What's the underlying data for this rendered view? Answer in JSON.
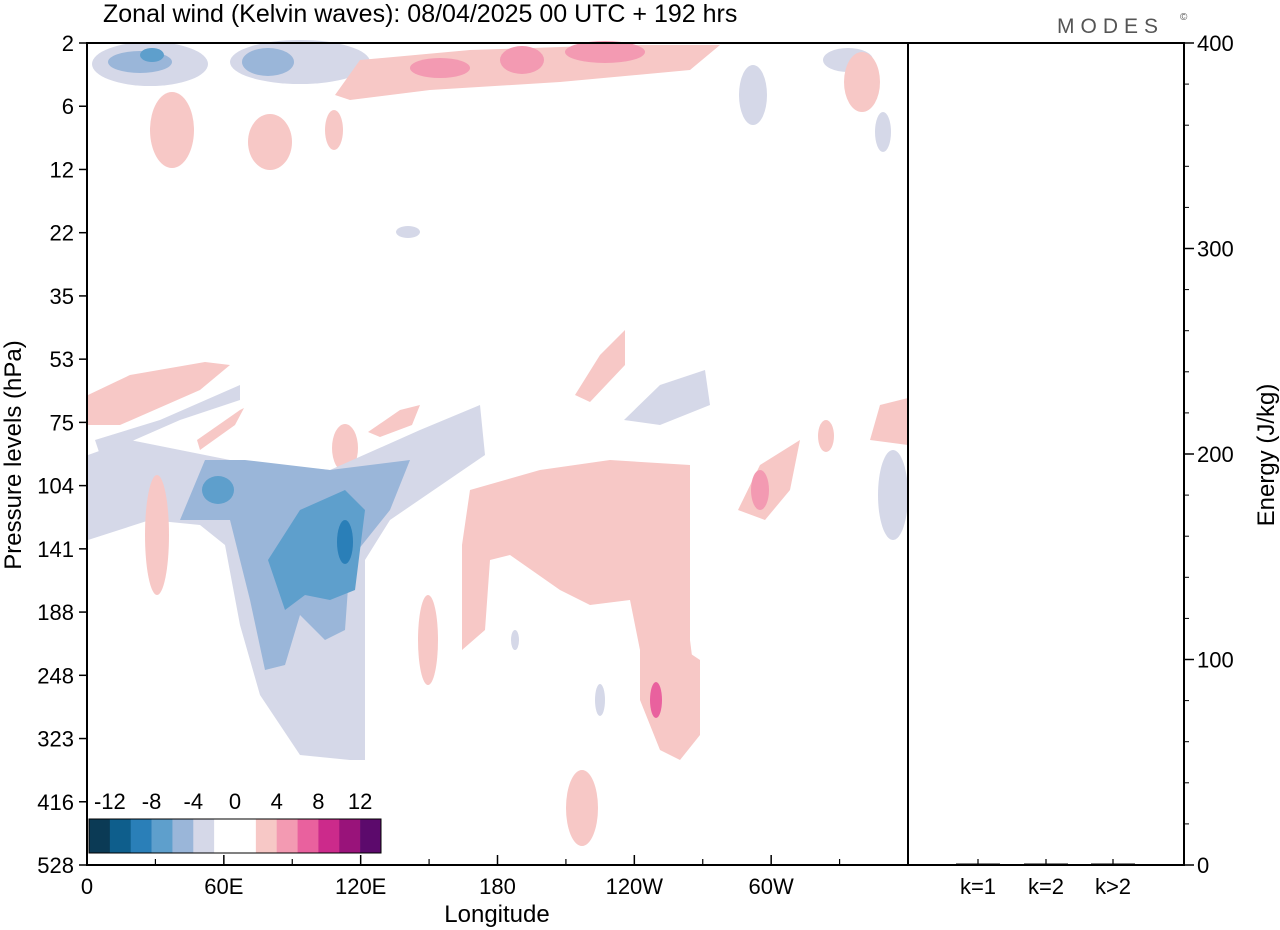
{
  "title": "Zonal wind (Kelvin waves):  08/04/2025  00 UTC  + 192 hrs",
  "logo": "MODES",
  "logo_mark": "©",
  "chart_data": [
    {
      "type": "heatmap",
      "title": "Zonal wind (Kelvin waves):  08/04/2025  00 UTC  + 192 hrs",
      "xlabel": "Longitude",
      "ylabel": "Pressure levels (hPa)",
      "x_ticks": [
        "0",
        "60E",
        "120E",
        "180",
        "120W",
        "60W"
      ],
      "y_ticks": [
        "2",
        "6",
        "12",
        "22",
        "35",
        "53",
        "75",
        "104",
        "141",
        "188",
        "248",
        "323",
        "416",
        "528"
      ],
      "colorbar": {
        "labels": [
          "-12",
          "-8",
          "-4",
          "0",
          "4",
          "8",
          "12"
        ],
        "colors": [
          "#0b3a55",
          "#0e5e8c",
          "#2a7fb8",
          "#5e9fcc",
          "#9ab6d9",
          "#d5d8e8",
          "#ffffff",
          "#ffffff",
          "#f7c8c6",
          "#f39ab2",
          "#e9619e",
          "#cc2a8b",
          "#99137a",
          "#5c0a6c"
        ]
      },
      "contour_colors": {
        "neg_light": "#d5d8e8",
        "neg_mid": "#9ab6d9",
        "neg_strong": "#5e9fcc",
        "neg_core": "#2a7fb8",
        "pos_light": "#f7c8c6",
        "pos_mid": "#f39ab2",
        "pos_strong": "#e9619e"
      }
    },
    {
      "type": "bar",
      "categories": [
        "k=1",
        "k=2",
        "k>2"
      ],
      "values": [
        0.5,
        0.3,
        0.5
      ],
      "ylabel": "Energy (J/kg)",
      "ylim": [
        0,
        400
      ],
      "y_ticks": [
        "0",
        "100",
        "200",
        "300",
        "400"
      ],
      "bar_color": "#000000"
    }
  ]
}
